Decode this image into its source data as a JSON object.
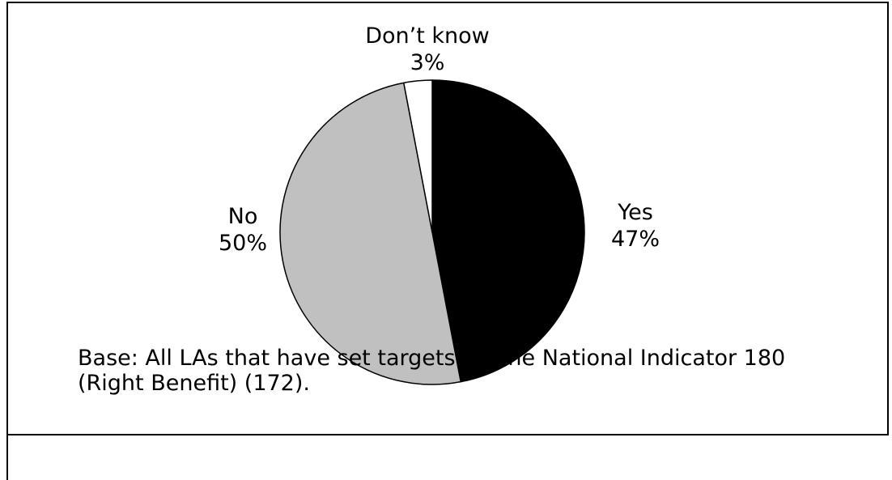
{
  "chart_data": {
    "type": "pie",
    "slices": [
      {
        "label": "Yes",
        "value": 47,
        "value_label": "47%",
        "color": "#000000"
      },
      {
        "label": "No",
        "value": 50,
        "value_label": "50%",
        "color": "#c0c0c0"
      },
      {
        "label": "Don’t know",
        "value": 3,
        "value_label": "3%",
        "color": "#ffffff"
      }
    ],
    "start": "12 o'clock",
    "direction": "clockwise",
    "stroke_color": "#000000",
    "note": "Base: All LAs that have set targets for the National Indicator 180 (Right Benefit) (172)."
  }
}
